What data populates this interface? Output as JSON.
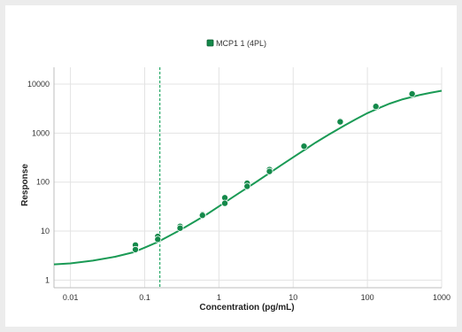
{
  "colors": {
    "series": "#1a9a55",
    "marker": "#14894a",
    "grid": "#e3e3e3",
    "axis": "#bdbdbd",
    "reference_line": "#2aaa6a"
  },
  "chart_data": {
    "type": "scatter",
    "xlabel": "Concentration (pg/mL)",
    "ylabel": "Response",
    "x_scale": "log",
    "y_scale": "log",
    "xlim": [
      0.006,
      1000
    ],
    "ylim": [
      0.7,
      22000
    ],
    "x_ticks": [
      0.01,
      0.1,
      1,
      10,
      100,
      1000
    ],
    "x_tick_labels": [
      "0.01",
      "0.1",
      "1",
      "10",
      "100",
      "1000"
    ],
    "y_ticks": [
      1,
      10,
      100,
      1000,
      10000
    ],
    "y_tick_labels": [
      "1",
      "10",
      "100",
      "1000",
      "10000"
    ],
    "grid": true,
    "legend_position": "top-center",
    "reference_line_x": 0.16,
    "series": [
      {
        "name": "MCP1 1 (4PL)",
        "points": [
          {
            "x": 0.075,
            "y": 5.2
          },
          {
            "x": 0.075,
            "y": 4.2
          },
          {
            "x": 0.15,
            "y": 7.8
          },
          {
            "x": 0.15,
            "y": 6.8
          },
          {
            "x": 0.3,
            "y": 12.5
          },
          {
            "x": 0.3,
            "y": 11.5
          },
          {
            "x": 0.6,
            "y": 22
          },
          {
            "x": 0.6,
            "y": 21
          },
          {
            "x": 1.2,
            "y": 48
          },
          {
            "x": 1.2,
            "y": 37
          },
          {
            "x": 2.4,
            "y": 95
          },
          {
            "x": 2.4,
            "y": 82
          },
          {
            "x": 4.8,
            "y": 180
          },
          {
            "x": 4.8,
            "y": 165
          },
          {
            "x": 14,
            "y": 560
          },
          {
            "x": 14,
            "y": 540
          },
          {
            "x": 43,
            "y": 1750
          },
          {
            "x": 43,
            "y": 1700
          },
          {
            "x": 130,
            "y": 3600
          },
          {
            "x": 130,
            "y": 3500
          },
          {
            "x": 400,
            "y": 6500
          },
          {
            "x": 400,
            "y": 6300
          }
        ],
        "curve": {
          "model": "4PL",
          "x": [
            0.006,
            0.01,
            0.02,
            0.04,
            0.07,
            0.1,
            0.15,
            0.2,
            0.3,
            0.5,
            0.7,
            1,
            1.5,
            2,
            3,
            5,
            7,
            10,
            15,
            20,
            30,
            50,
            70,
            100,
            150,
            200,
            300,
            500,
            700,
            1000
          ],
          "y": [
            2.1,
            2.2,
            2.5,
            3.0,
            3.7,
            4.6,
            6.0,
            7.6,
            10.5,
            16.5,
            22.5,
            32,
            48,
            64,
            95,
            160,
            225,
            320,
            480,
            640,
            930,
            1450,
            1920,
            2550,
            3350,
            4000,
            4900,
            5950,
            6600,
            7300
          ]
        }
      }
    ]
  }
}
